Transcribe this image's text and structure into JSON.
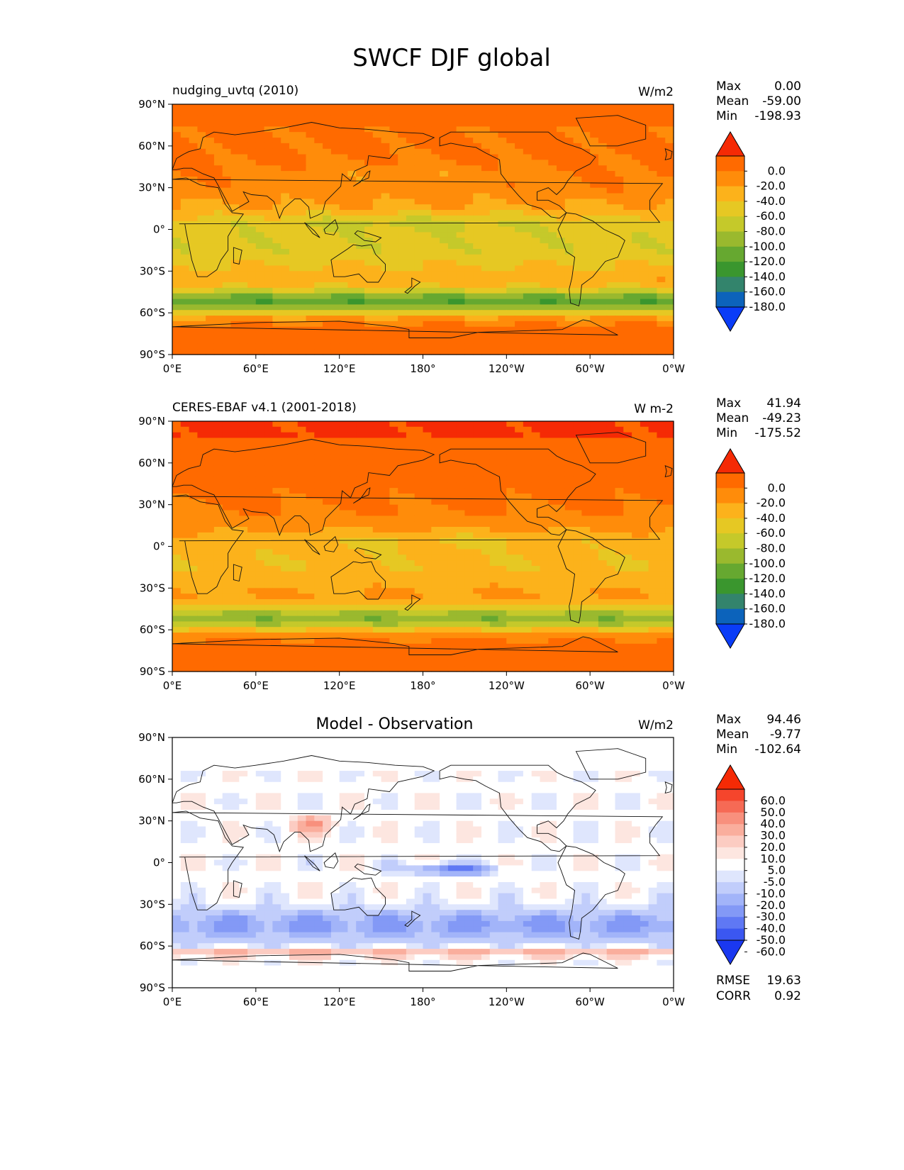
{
  "figure": {
    "title": "SWCF DJF global"
  },
  "chart_data": [
    {
      "type": "heatmap",
      "map": "global",
      "title": "",
      "left_label": "nudging_uvtq (2010)",
      "units": "W/m2",
      "stats": {
        "max": "0.00",
        "mean": "-59.00",
        "min": "-198.93"
      },
      "stats_labels": {
        "max": "Max",
        "mean": "Mean",
        "min": "Min"
      },
      "colorbar": {
        "levels": [
          "0.0",
          "-20.0",
          "-40.0",
          "-60.0",
          "-80.0",
          "-100.0",
          "-120.0",
          "-140.0",
          "-160.0",
          "-180.0"
        ],
        "colors": [
          "#f52a05",
          "#ff6a00",
          "#ff8c0a",
          "#fcb21b",
          "#e6c823",
          "#c5c92a",
          "#9ab92e",
          "#66a830",
          "#3a962e",
          "#33846c",
          "#0c63bb",
          "#0a3cf7"
        ]
      },
      "xticks": [
        "0°E",
        "60°E",
        "120°E",
        "180°",
        "120°W",
        "60°W",
        "0°W"
      ],
      "yticks": [
        "90°N",
        "60°N",
        "30°N",
        "0°",
        "30°S",
        "60°S",
        "90°S"
      ],
      "xlim": [
        0,
        360
      ],
      "ylim": [
        -90,
        90
      ]
    },
    {
      "type": "heatmap",
      "map": "global",
      "title": "",
      "left_label": "CERES-EBAF v4.1 (2001-2018)",
      "units": "W m-2",
      "stats": {
        "max": "41.94",
        "mean": "-49.23",
        "min": "-175.52"
      },
      "stats_labels": {
        "max": "Max",
        "mean": "Mean",
        "min": "Min"
      },
      "colorbar": {
        "levels": [
          "0.0",
          "-20.0",
          "-40.0",
          "-60.0",
          "-80.0",
          "-100.0",
          "-120.0",
          "-140.0",
          "-160.0",
          "-180.0"
        ],
        "colors": [
          "#f52a05",
          "#ff6a00",
          "#ff8c0a",
          "#fcb21b",
          "#e6c823",
          "#c5c92a",
          "#9ab92e",
          "#66a830",
          "#3a962e",
          "#33846c",
          "#0c63bb",
          "#0a3cf7"
        ]
      },
      "xticks": [
        "0°E",
        "60°E",
        "120°E",
        "180°",
        "120°W",
        "60°W",
        "0°W"
      ],
      "yticks": [
        "90°N",
        "60°N",
        "30°N",
        "0°",
        "30°S",
        "60°S",
        "90°S"
      ],
      "xlim": [
        0,
        360
      ],
      "ylim": [
        -90,
        90
      ]
    },
    {
      "type": "heatmap",
      "map": "global",
      "title": "Model - Observation",
      "left_label": "",
      "units": "W/m2",
      "stats": {
        "max": "94.46",
        "mean": "-9.77",
        "min": "-102.64"
      },
      "stats_labels": {
        "max": "Max",
        "mean": "Mean",
        "min": "Min"
      },
      "extra_stats": {
        "rmse_label": "RMSE",
        "rmse": "19.63",
        "corr_label": "CORR",
        "corr": "0.92"
      },
      "colorbar": {
        "levels": [
          "60.0",
          "50.0",
          "40.0",
          "30.0",
          "20.0",
          "10.0",
          "5.0",
          "-5.0",
          "-10.0",
          "-20.0",
          "-30.0",
          "-40.0",
          "-50.0",
          "-60.0"
        ],
        "colors": [
          "#f52a05",
          "#f5452c",
          "#f66a55",
          "#f8907d",
          "#faae9d",
          "#fcccc2",
          "#fde6e0",
          "#ffffff",
          "#dfe6fd",
          "#c1cdfb",
          "#a2b4f9",
          "#8399f6",
          "#5f78f4",
          "#3b57f1",
          "#1a38f0"
        ]
      },
      "xticks": [
        "0°E",
        "60°E",
        "120°E",
        "180°",
        "120°W",
        "60°W",
        "0°W"
      ],
      "yticks": [
        "90°N",
        "60°N",
        "30°N",
        "0°",
        "30°S",
        "60°S",
        "90°S"
      ],
      "xlim": [
        0,
        360
      ],
      "ylim": [
        -90,
        90
      ]
    }
  ]
}
